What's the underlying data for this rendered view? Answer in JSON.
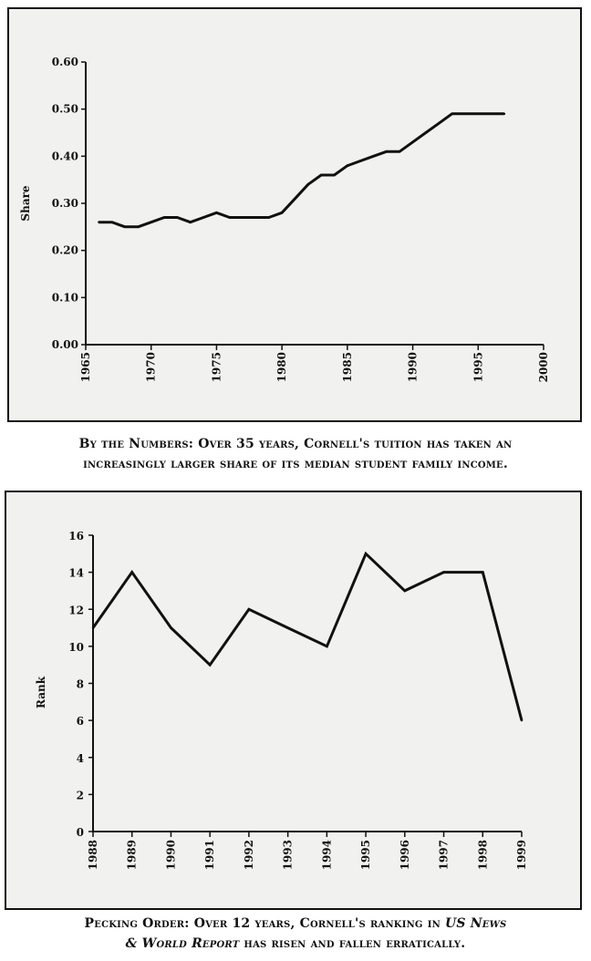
{
  "chart_data": [
    {
      "type": "line",
      "title": "",
      "xlabel": "",
      "ylabel": "Share",
      "xlim": [
        1965,
        2000
      ],
      "ylim": [
        0.0,
        0.6
      ],
      "x_ticks": [
        "1965",
        "1970",
        "1975",
        "1980",
        "1985",
        "1990",
        "1995",
        "2000"
      ],
      "y_ticks": [
        "0.00",
        "0.10",
        "0.20",
        "0.30",
        "0.40",
        "0.50",
        "0.60"
      ],
      "grid": false,
      "series": [
        {
          "x": [
            1966,
            1967,
            1968,
            1969,
            1970,
            1971,
            1972,
            1973,
            1974,
            1975,
            1976,
            1977,
            1978,
            1979,
            1980,
            1981,
            1982,
            1983,
            1984,
            1985,
            1986,
            1987,
            1988,
            1989,
            1990,
            1991,
            1992,
            1993,
            1994,
            1995,
            1996,
            1997
          ],
          "values": [
            0.26,
            0.26,
            0.25,
            0.25,
            0.26,
            0.27,
            0.27,
            0.26,
            0.27,
            0.28,
            0.27,
            0.27,
            0.27,
            0.27,
            0.28,
            0.31,
            0.34,
            0.36,
            0.36,
            0.38,
            0.39,
            0.4,
            0.41,
            0.41,
            0.43,
            0.45,
            0.47,
            0.49,
            0.49,
            0.49,
            0.49,
            0.49
          ]
        }
      ]
    },
    {
      "type": "line",
      "title": "",
      "xlabel": "",
      "ylabel": "Rank",
      "ylim": [
        0,
        16
      ],
      "categories": [
        "1988",
        "1989",
        "1990",
        "1991",
        "1992",
        "1993",
        "1994",
        "1995",
        "1996",
        "1997",
        "1998",
        "1999"
      ],
      "y_ticks": [
        "0",
        "2",
        "4",
        "6",
        "8",
        "10",
        "12",
        "14",
        "16"
      ],
      "grid": false,
      "series": [
        {
          "values": [
            11,
            14,
            11,
            9,
            12,
            11,
            10,
            15,
            13,
            14,
            14,
            6
          ]
        }
      ]
    }
  ],
  "captions": {
    "chart1": {
      "line1": "By the Numbers: Over 35 years, Cornell's tuition has taken an",
      "line2": "increasingly larger share of its median student family income."
    },
    "chart2": {
      "line1_a": "Pecking Order: Over 12 years, Cornell's ranking in ",
      "line1_b": "US News",
      "line2_a": "& World Report",
      "line2_b": " has risen and fallen erratically."
    }
  },
  "colors": {
    "ink": "#111111",
    "panel_bg": "#f1f1ef"
  }
}
